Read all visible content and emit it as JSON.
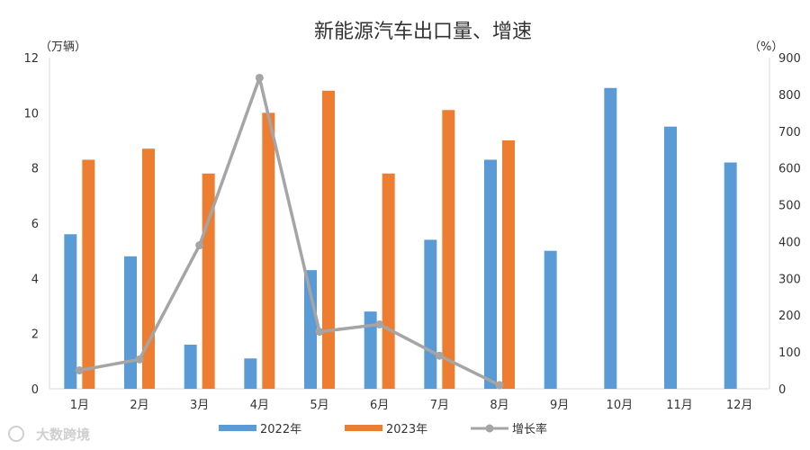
{
  "chart_data": {
    "type": "bar",
    "title": "新能源汽车出口量、增速",
    "categories": [
      "1月",
      "2月",
      "3月",
      "4月",
      "5月",
      "6月",
      "7月",
      "8月",
      "9月",
      "10月",
      "11月",
      "12月"
    ],
    "y_left": {
      "unit_label": "（万辆）",
      "range": [
        0,
        12
      ],
      "ticks": [
        "0",
        "2",
        "4",
        "6",
        "8",
        "10",
        "12"
      ]
    },
    "y_right": {
      "unit_label": "（%）",
      "range": [
        0,
        900
      ],
      "ticks": [
        "0",
        "100",
        "200",
        "300",
        "400",
        "500",
        "600",
        "700",
        "800",
        "900"
      ]
    },
    "series": [
      {
        "name": "2022年",
        "kind": "bar",
        "axis": "left",
        "color": "#5b9bd5",
        "values": [
          5.6,
          4.8,
          1.6,
          1.1,
          4.3,
          2.8,
          5.4,
          8.3,
          5.0,
          10.9,
          9.5,
          8.2
        ]
      },
      {
        "name": "2023年",
        "kind": "bar",
        "axis": "left",
        "color": "#ed7d31",
        "values": [
          8.3,
          8.7,
          7.8,
          10.0,
          10.8,
          7.8,
          10.1,
          9.0,
          null,
          null,
          null,
          null
        ]
      },
      {
        "name": "增长率",
        "kind": "line",
        "axis": "right",
        "color": "#a5a5a5",
        "values": [
          50,
          80,
          390,
          845,
          155,
          175,
          90,
          10,
          null,
          null,
          null,
          null
        ]
      }
    ],
    "grid": false,
    "legend_position": "bottom"
  },
  "watermark": {
    "text": "大数跨境"
  }
}
